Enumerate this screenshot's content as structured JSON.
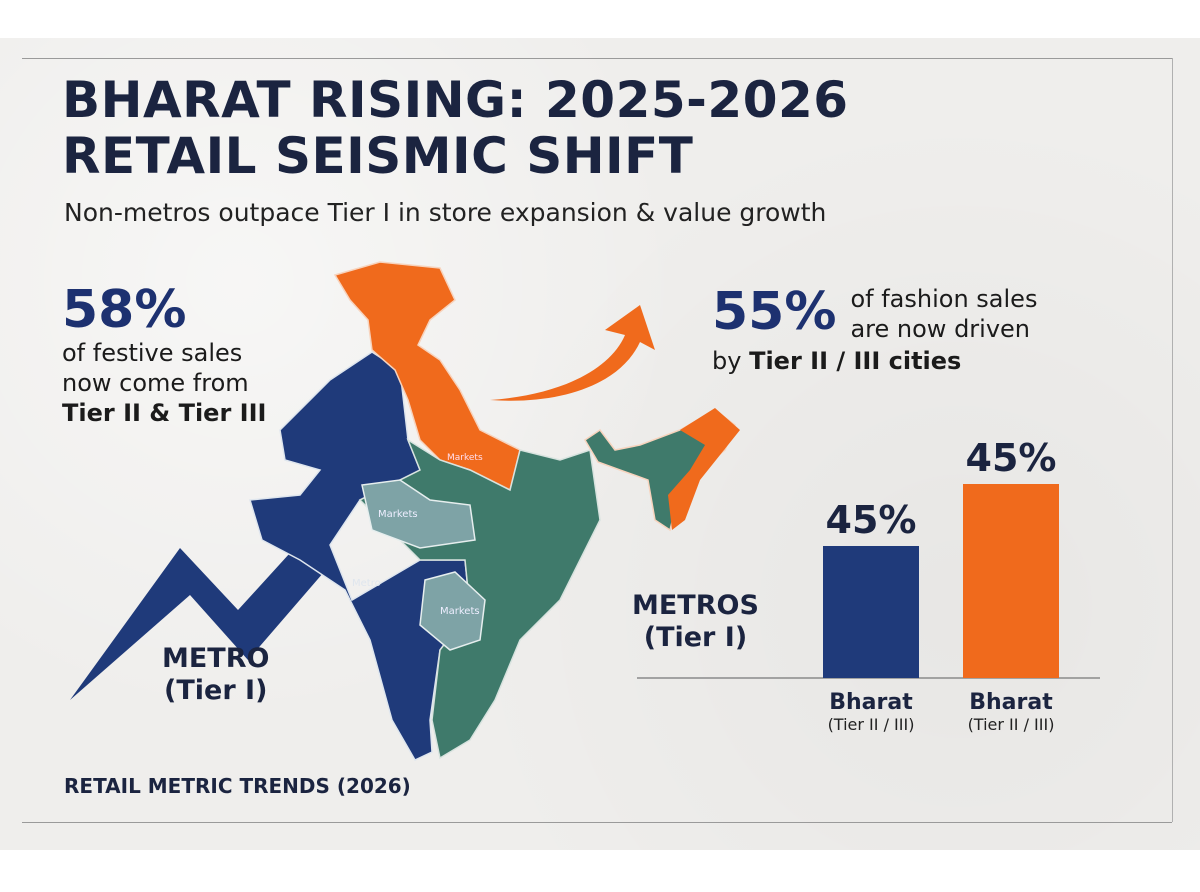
{
  "title_line1": "BHARAT RISING: 2025-2026",
  "title_line2": "RETAIL SEISMIC SHIFT",
  "subtitle": "Non-metros outpace Tier I in store expansion & value growth",
  "stat_left": {
    "value": "58%",
    "lines": [
      "of festive sales",
      "now come from",
      "Tier II & Tier III"
    ]
  },
  "stat_right": {
    "value": "55%",
    "lines": [
      "of fashion sales",
      "are now driven"
    ],
    "line3_prefix": "by ",
    "line3_bold": "Tier II / III cities"
  },
  "map": {
    "labels": [
      "Metro",
      "Markets",
      "Markets",
      "Markets"
    ],
    "icons": [
      "india-map",
      "zigzag-arrow-icon",
      "curved-arrow-icon"
    ]
  },
  "metro_label": [
    "METRO",
    "(Tier I)"
  ],
  "metros_label": [
    "METROS",
    "(Tier I)"
  ],
  "footer": "RETAIL METRIC TRENDS (2026)",
  "colors": {
    "navy": "#1f3a7a",
    "orange": "#f06a1c",
    "green": "#3f7a6b",
    "teal": "#7ea3a6",
    "text": "#1b2440"
  },
  "chart_data": {
    "type": "bar",
    "categories": [
      "Bharat (Tier II / III)",
      "Bharat (Tier II / III)"
    ],
    "category_main": [
      "Bharat",
      "Bharat"
    ],
    "category_sub": [
      "(Tier II / III)",
      "(Tier II / III)"
    ],
    "values": [
      45,
      45
    ],
    "value_labels": [
      "45%",
      "45%"
    ],
    "colors": [
      "#1f3a7a",
      "#f06a1c"
    ],
    "title": "",
    "xlabel": "",
    "ylabel": "",
    "grid": false
  }
}
